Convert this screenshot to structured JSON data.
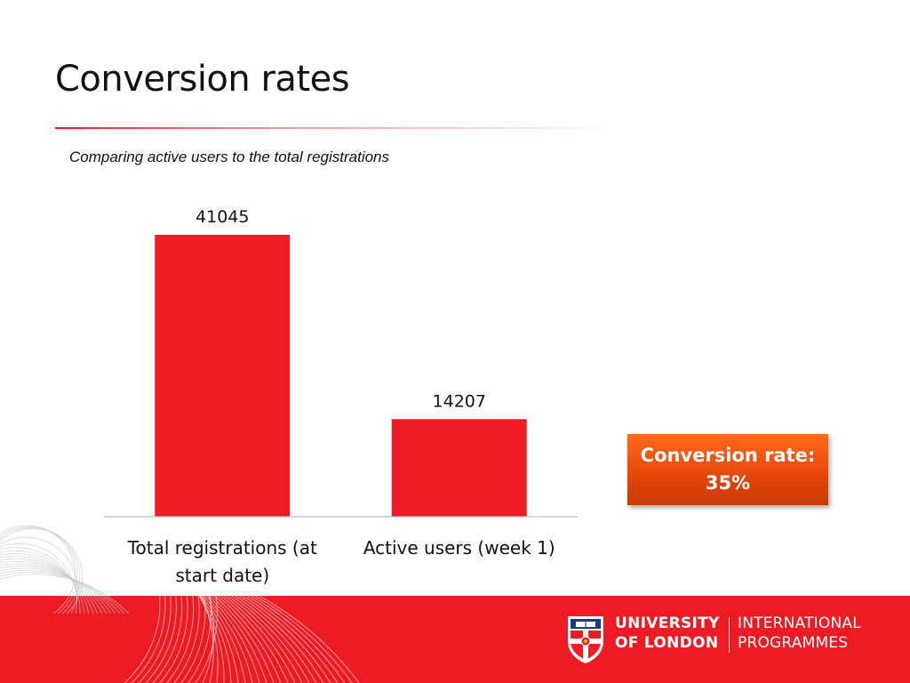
{
  "slide": {
    "title": "Conversion rates",
    "subtitle": "Comparing active users to the total registrations"
  },
  "callout": {
    "line1": "Conversion rate:",
    "line2": "35%"
  },
  "footer": {
    "logo_line1": "UNIVERSITY",
    "logo_line2": "OF LONDON",
    "programme_line1": "INTERNATIONAL",
    "programme_line2": "PROGRAMMES",
    "crest_icon": "university-crest-icon",
    "band_color": "#ed1c24"
  },
  "chart_data": {
    "type": "bar",
    "categories": [
      [
        "Total registrations (at",
        "start date)"
      ],
      [
        "Active users (week 1)"
      ]
    ],
    "values": [
      41045,
      14207
    ],
    "data_labels": [
      "41045",
      "14207"
    ],
    "ylim": [
      0,
      41045
    ],
    "grid": false,
    "bar_color": "#ed1c24"
  }
}
